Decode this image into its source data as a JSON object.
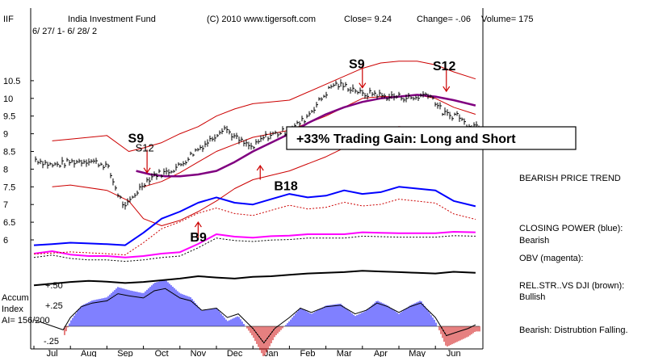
{
  "header": {
    "symbol": "IIF",
    "name": "India Investment Fund",
    "copyright": "(C) 2010 www.tigersoft.com",
    "close_text": "Close=   9.24",
    "change_text": "Change= -.06",
    "volume_text": "Volume= 175",
    "date_range": "6/ 27/ 1- 6/ 28/ 2"
  },
  "colors": {
    "price": "#000000",
    "bands": "#cc0000",
    "ma": "#800080",
    "closing_power": "#0000ff",
    "obv": "#ff00ff",
    "rel_str": "#000000",
    "accum_pos": "#0000ff",
    "accum_neg": "#cc0000",
    "frame": "#000000"
  },
  "annotations": {
    "gain_box": "+33% Trading Gain: Long and Short",
    "signals": [
      {
        "text": "S9",
        "big": true,
        "month": 2.8,
        "level": 8.75
      },
      {
        "text": "S12",
        "big": false,
        "month": 3.0,
        "level": 8.5
      },
      {
        "text": "B9",
        "big": true,
        "month": 4.5,
        "level": 5.95
      },
      {
        "text": "B18",
        "big": true,
        "month": 6.8,
        "level": 7.4
      },
      {
        "text": "S9",
        "big": true,
        "month": 8.85,
        "level": 10.85
      },
      {
        "text": "S12",
        "big": true,
        "month": 11.15,
        "level": 10.8
      }
    ],
    "arrows": [
      {
        "dir": "down",
        "month": 3.1,
        "from": 8.55,
        "to": 7.9
      },
      {
        "dir": "up",
        "month": 4.5,
        "from": 6.05,
        "to": 6.5
      },
      {
        "dir": "up",
        "month": 6.2,
        "from": 7.7,
        "to": 8.1
      },
      {
        "dir": "down",
        "month": 9.0,
        "from": 10.95,
        "to": 10.3
      },
      {
        "dir": "down",
        "month": 11.3,
        "from": 10.85,
        "to": 10.2
      }
    ]
  },
  "side_labels": {
    "price_trend": "BEARISH PRICE TREND",
    "closing_power_title": "CLOSING POWER (blue):",
    "closing_power_value": "Bearish",
    "obv_title": "OBV (magenta):",
    "rel_title": "REL.STR..VS DJI (brown):",
    "rel_value": "Bullish",
    "accum_value": "Bearish: Distrubtion Falling."
  },
  "accum_labels": {
    "title1": "Accum",
    "title2": "Index",
    "ai": "AI= 156/200",
    "tick_50": "+.50",
    "tick_25": "+.25",
    "tick_m25": "-.25"
  },
  "chart_data": {
    "type": "line",
    "title": "India Investment Fund",
    "xlabel": "",
    "ylabel": "",
    "ylim": [
      5.6,
      11.05
    ],
    "yticks": [
      "10.5",
      "10",
      "9.5",
      "9",
      "8.5",
      "8",
      "7.5",
      "7",
      "6.5",
      "6"
    ],
    "months": [
      "Jul",
      "Aug",
      "Sep",
      "Oct",
      "Nov",
      "Dec",
      "Jan",
      "Feb",
      "Mar",
      "Apr",
      "May",
      "Jun"
    ],
    "series": [
      {
        "key": "close",
        "x": [
          0.0,
          0.5,
          1.0,
          1.5,
          2.0,
          2.3,
          2.5,
          2.7,
          3.0,
          3.3,
          3.6,
          4.0,
          4.4,
          4.8,
          5.2,
          5.5,
          5.8,
          6.0,
          6.3,
          6.6,
          7.0,
          7.4,
          7.8,
          8.2,
          8.5,
          8.8,
          9.0,
          9.3,
          9.6,
          10.0,
          10.4,
          10.8,
          11.0,
          11.2,
          11.4,
          11.6,
          11.8,
          12.1
        ],
        "values": [
          8.3,
          8.1,
          8.2,
          8.25,
          8.1,
          7.3,
          6.9,
          7.2,
          7.6,
          7.85,
          7.9,
          8.1,
          8.5,
          8.8,
          9.2,
          8.9,
          8.7,
          8.6,
          8.9,
          9.0,
          9.1,
          9.4,
          9.9,
          10.4,
          10.35,
          10.25,
          10.1,
          10.15,
          10.05,
          10.05,
          10.0,
          10.15,
          9.9,
          9.6,
          9.5,
          9.55,
          9.3,
          9.24
        ]
      },
      {
        "key": "upper_band",
        "x": [
          0.5,
          1.0,
          2.0,
          2.6,
          3.0,
          3.5,
          4.0,
          4.5,
          5.0,
          5.5,
          6.0,
          7.0,
          8.0,
          9.0,
          9.5,
          10.0,
          10.5,
          11.0,
          11.5,
          12.1
        ],
        "values": [
          8.8,
          8.85,
          8.95,
          8.5,
          8.6,
          8.75,
          9.0,
          9.2,
          9.5,
          9.7,
          9.85,
          9.95,
          10.4,
          10.85,
          11.0,
          11.05,
          11.05,
          10.95,
          10.75,
          10.55
        ]
      },
      {
        "key": "lower_band",
        "x": [
          0.5,
          1.0,
          2.0,
          2.6,
          3.0,
          3.5,
          4.0,
          4.5,
          5.0,
          5.5,
          6.0,
          7.0,
          8.0,
          9.0,
          9.5,
          10.0,
          10.5,
          11.0,
          11.5,
          12.1
        ],
        "values": [
          7.5,
          7.55,
          7.4,
          7.1,
          6.6,
          6.4,
          6.55,
          6.8,
          7.1,
          7.45,
          7.7,
          7.95,
          8.35,
          8.85,
          9.1,
          9.2,
          9.15,
          9.1,
          8.85,
          8.65
        ]
      },
      {
        "key": "center_band",
        "x": [
          3.0,
          3.5,
          4.0,
          4.5,
          5.0,
          5.5,
          6.0,
          6.5,
          7.0,
          7.5,
          8.0,
          8.5,
          9.0,
          9.5,
          10.0,
          10.5,
          11.0,
          11.5,
          12.1
        ],
        "values": [
          7.5,
          7.65,
          7.9,
          8.2,
          8.5,
          8.7,
          8.9,
          9.0,
          9.1,
          9.3,
          9.5,
          9.75,
          10.0,
          10.05,
          10.05,
          10.1,
          10.0,
          9.75,
          9.55
        ]
      },
      {
        "key": "moving_avg",
        "x": [
          2.8,
          3.2,
          3.6,
          4.0,
          4.5,
          5.0,
          5.5,
          6.0,
          6.5,
          7.0,
          7.5,
          8.0,
          8.5,
          9.0,
          9.5,
          10.0,
          10.5,
          11.0,
          11.5,
          12.1
        ],
        "values": [
          7.95,
          7.85,
          7.8,
          7.8,
          7.85,
          7.95,
          8.2,
          8.5,
          8.75,
          9.0,
          9.3,
          9.55,
          9.75,
          9.9,
          10.0,
          10.05,
          10.1,
          10.05,
          9.95,
          9.8
        ]
      },
      {
        "key": "closing_power",
        "x": [
          0.0,
          0.5,
          1.0,
          1.5,
          2.0,
          2.5,
          3.0,
          3.5,
          4.0,
          4.5,
          5.0,
          5.5,
          6.0,
          6.5,
          7.0,
          7.5,
          8.0,
          8.5,
          9.0,
          9.5,
          10.0,
          10.5,
          11.0,
          11.5,
          12.1
        ],
        "values": [
          5.85,
          5.88,
          5.92,
          5.9,
          5.88,
          5.85,
          6.2,
          6.6,
          6.8,
          7.05,
          7.2,
          7.05,
          7.0,
          7.15,
          7.3,
          7.2,
          7.25,
          7.4,
          7.3,
          7.35,
          7.5,
          7.45,
          7.4,
          7.1,
          6.95
        ]
      },
      {
        "key": "obv",
        "x": [
          0.0,
          0.5,
          1.0,
          1.5,
          2.0,
          2.5,
          3.0,
          3.5,
          4.0,
          4.5,
          5.0,
          5.5,
          6.0,
          6.5,
          7.0,
          7.5,
          8.0,
          8.5,
          9.0,
          9.5,
          10.0,
          10.5,
          11.0,
          11.5,
          12.1
        ],
        "values": [
          30,
          35,
          28,
          25,
          25,
          22,
          25,
          30,
          33,
          50,
          70,
          65,
          63,
          66,
          67,
          70,
          70,
          70,
          74,
          73,
          72,
          72,
          72,
          75,
          74
        ]
      },
      {
        "key": "rel_strength",
        "x": [
          0.0,
          0.5,
          1.0,
          1.5,
          2.0,
          2.5,
          3.0,
          3.5,
          4.0,
          4.5,
          5.0,
          5.5,
          6.0,
          6.5,
          7.0,
          7.5,
          8.0,
          8.5,
          9.0,
          9.5,
          10.0,
          10.5,
          11.0,
          11.5,
          12.1
        ],
        "values": [
          35,
          40,
          45,
          48,
          46,
          42,
          45,
          50,
          55,
          62,
          58,
          55,
          60,
          62,
          66,
          70,
          72,
          74,
          78,
          76,
          74,
          72,
          70,
          75,
          72
        ]
      },
      {
        "key": "accum_index",
        "x": [
          0.0,
          0.4,
          0.8,
          1.0,
          1.3,
          1.6,
          2.0,
          2.3,
          2.6,
          3.0,
          3.3,
          3.6,
          4.0,
          4.3,
          4.6,
          5.0,
          5.3,
          5.6,
          6.0,
          6.3,
          6.6,
          7.0,
          7.3,
          7.6,
          8.0,
          8.4,
          8.8,
          9.1,
          9.4,
          9.7,
          10.0,
          10.3,
          10.6,
          11.0,
          11.3,
          11.6,
          11.9,
          12.1
        ],
        "values": [
          0.02,
          -0.05,
          -0.12,
          0.05,
          0.2,
          0.25,
          0.28,
          0.38,
          0.35,
          0.32,
          0.42,
          0.45,
          0.32,
          0.28,
          0.15,
          0.18,
          0.05,
          0.1,
          -0.1,
          -0.3,
          -0.1,
          0.05,
          0.18,
          0.12,
          0.2,
          0.22,
          0.1,
          0.15,
          0.25,
          0.2,
          0.12,
          0.2,
          0.25,
          0.05,
          -0.2,
          -0.15,
          -0.1,
          -0.05
        ]
      }
    ]
  }
}
